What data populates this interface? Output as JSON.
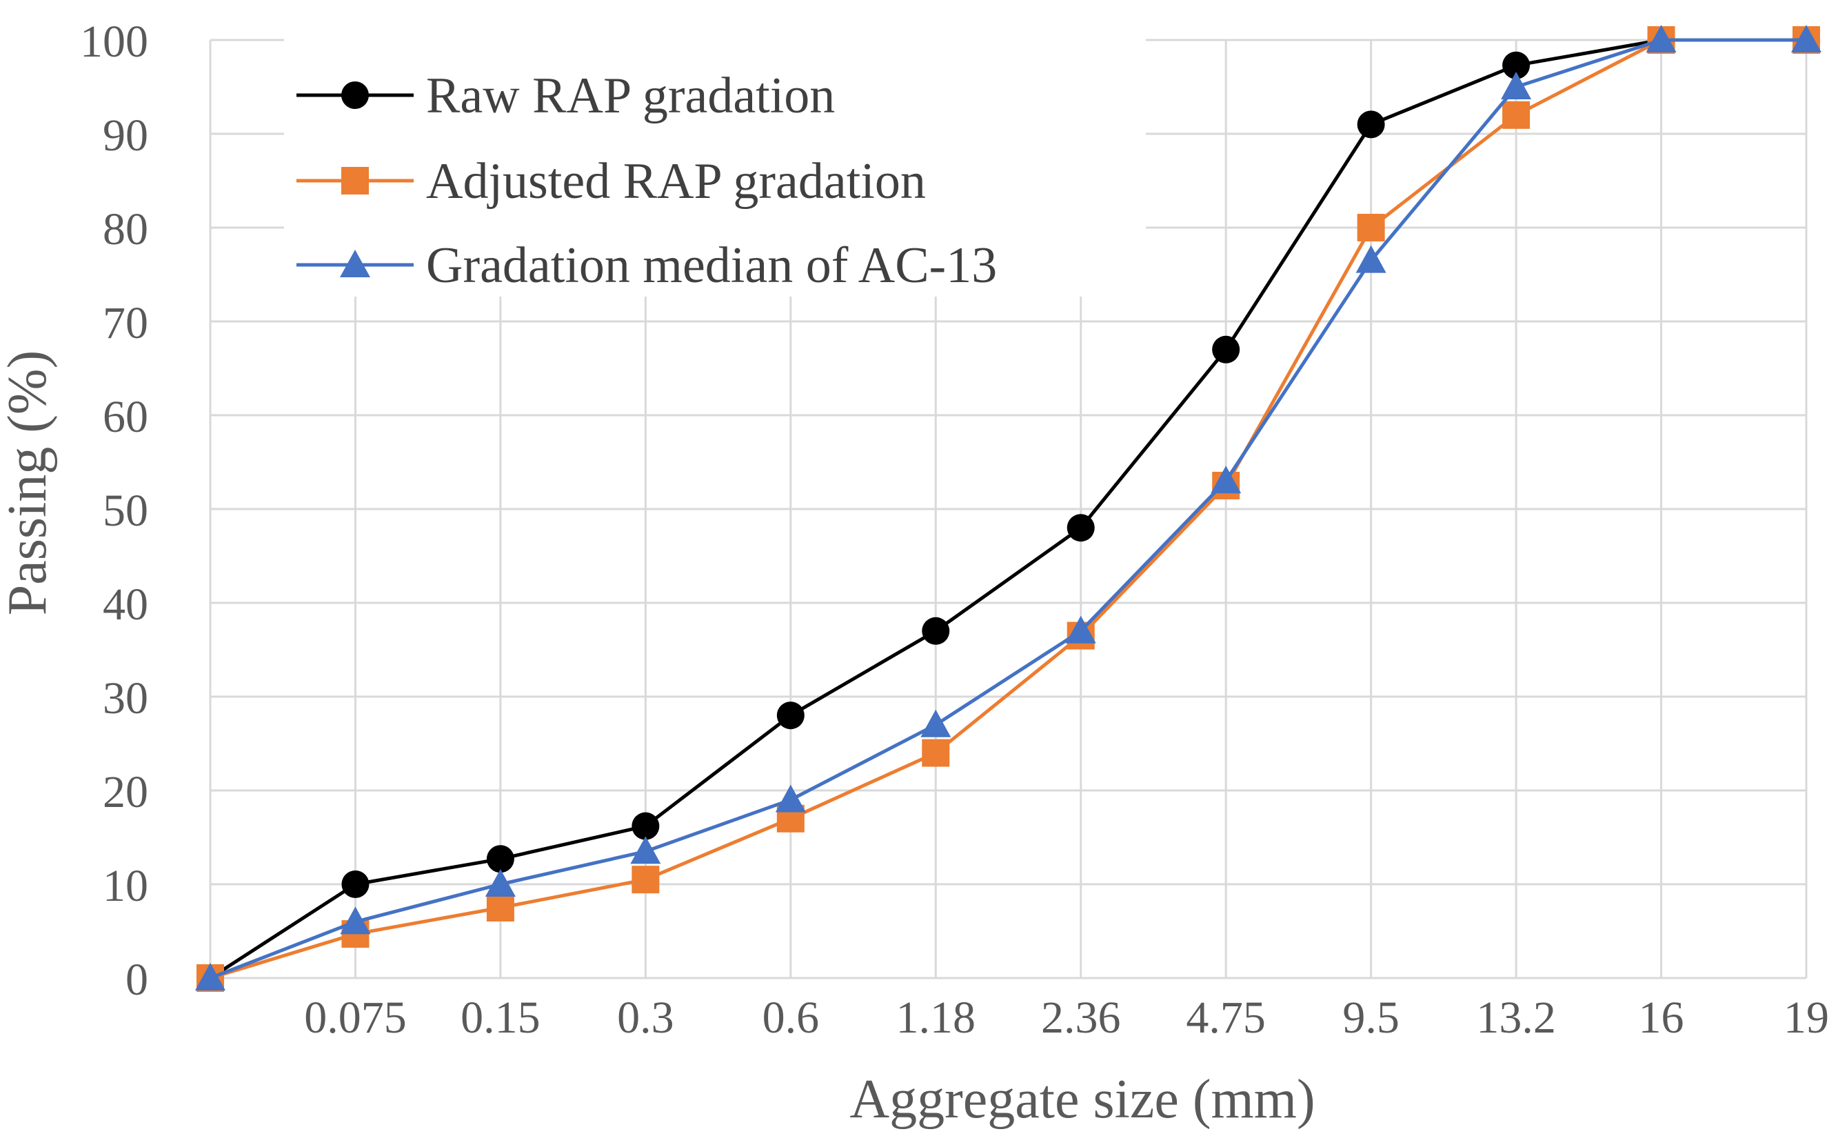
{
  "chart_data": {
    "type": "line",
    "title": "",
    "xlabel": "Aggregate size (mm)",
    "ylabel": "Passing (%)",
    "ylim": [
      0,
      100
    ],
    "yticks": [
      "0",
      "10",
      "20",
      "30",
      "40",
      "50",
      "60",
      "70",
      "80",
      "90",
      "100"
    ],
    "categories": [
      "",
      "0.075",
      "0.15",
      "0.3",
      "0.6",
      "1.18",
      "2.36",
      "4.75",
      "9.5",
      "13.2",
      "16",
      "19"
    ],
    "grid": true,
    "legend_position": "top-left",
    "series": [
      {
        "name": "Raw RAP gradation",
        "color": "#000000",
        "marker": "circle",
        "values": [
          0,
          10,
          12.7,
          16.2,
          28,
          37,
          48,
          67,
          91,
          97.3,
          100,
          100
        ]
      },
      {
        "name": "Adjusted RAP gradation",
        "color": "#ED7D31",
        "marker": "square",
        "values": [
          0,
          4.7,
          7.5,
          10.5,
          17,
          24,
          36.5,
          52.5,
          80,
          92,
          100,
          100
        ]
      },
      {
        "name": "Gradation median of AC-13",
        "color": "#4472C4",
        "marker": "triangle",
        "values": [
          0,
          6,
          10,
          13.5,
          19,
          27,
          37,
          53,
          76.5,
          95,
          100,
          100
        ]
      }
    ]
  }
}
